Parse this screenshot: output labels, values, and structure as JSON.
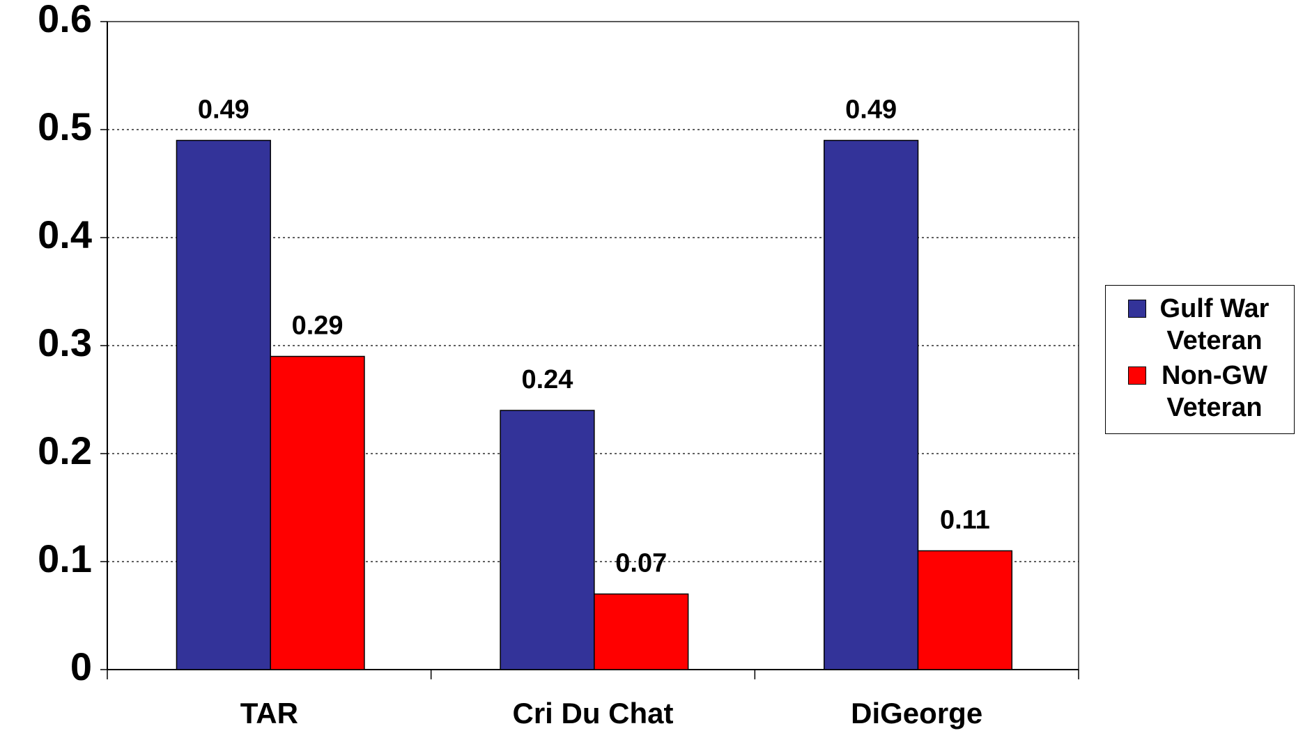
{
  "chart_data": {
    "type": "bar",
    "categories": [
      "TAR",
      "Cri Du Chat",
      "DiGeorge"
    ],
    "series": [
      {
        "name": "Gulf War Veteran",
        "color": "#333399",
        "values": [
          0.49,
          0.24,
          0.49
        ]
      },
      {
        "name": "Non-GW Veteran",
        "color": "#ff0000",
        "values": [
          0.29,
          0.07,
          0.11
        ]
      }
    ],
    "ylim": [
      0,
      0.6
    ],
    "yticks": [
      0,
      0.1,
      0.2,
      0.3,
      0.4,
      0.5,
      0.6
    ],
    "grid": true,
    "legend": "right"
  }
}
